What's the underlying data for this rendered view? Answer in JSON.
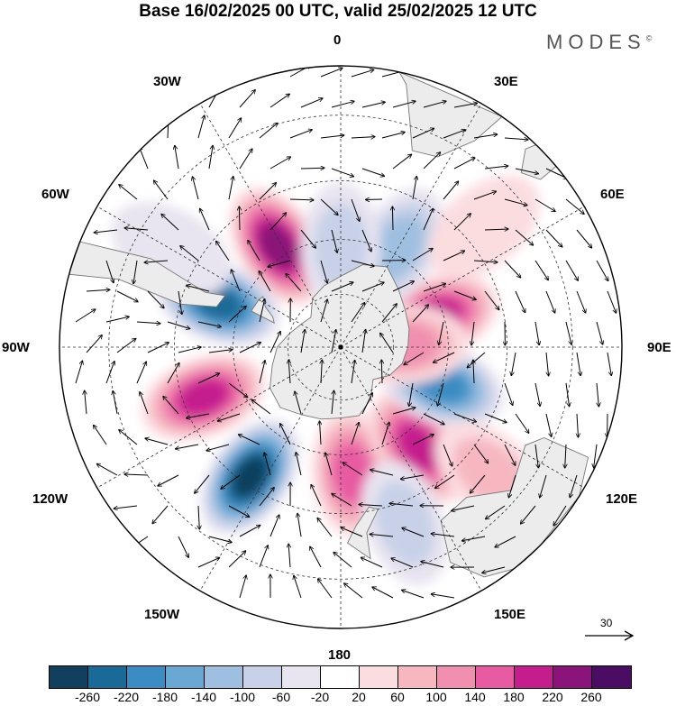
{
  "title": "Base 16/02/2025 00 UTC, valid 25/02/2025 12 UTC",
  "brand": "MODES",
  "brand_mark": "©",
  "map": {
    "projection": "south-polar-stereographic",
    "longitude_labels": {
      "top": "0",
      "top_right": "30E",
      "right_upper": "60E",
      "right": "90E",
      "right_lower": "120E",
      "bottom_right": "150E",
      "bottom": "180",
      "bottom_left": "150W",
      "left_lower": "120W",
      "left": "90W",
      "left_upper": "60W",
      "top_left": "30W"
    },
    "colors": {
      "land": "#ececec",
      "coast": "#777777",
      "grid": "#333333"
    }
  },
  "reference_vector": {
    "label": "30"
  },
  "colorbar": {
    "colors": [
      "#10405e",
      "#1a6a97",
      "#3a8cc2",
      "#6aa8d4",
      "#9fbfe0",
      "#c8d1e8",
      "#e8e4f0",
      "#ffffff",
      "#fbdde0",
      "#f6b7c1",
      "#f08fb0",
      "#e85aa2",
      "#c51d8e",
      "#8a1479",
      "#4b0d63"
    ],
    "tick_labels": [
      "-260",
      "-220",
      "-180",
      "-140",
      "-100",
      "-60",
      "-20",
      "20",
      "60",
      "100",
      "140",
      "180",
      "220",
      "260"
    ]
  },
  "anomalies": [
    {
      "lon": -32,
      "lat": -57,
      "value": 230
    },
    {
      "lon": -70,
      "lat": -54,
      "value": -240
    },
    {
      "lon": -110,
      "lat": -50,
      "value": 210
    },
    {
      "lon": -145,
      "lat": -47,
      "value": -260
    },
    {
      "lon": 175,
      "lat": -55,
      "value": 150
    },
    {
      "lon": 142,
      "lat": -55,
      "value": 200
    },
    {
      "lon": 110,
      "lat": -60,
      "value": -210
    },
    {
      "lon": 72,
      "lat": -62,
      "value": 180
    },
    {
      "lon": 88,
      "lat": -72,
      "value": 120
    },
    {
      "lon": 30,
      "lat": -58,
      "value": -130
    },
    {
      "lon": 0,
      "lat": -62,
      "value": -60
    },
    {
      "lon": 130,
      "lat": -38,
      "value": 60
    },
    {
      "lon": 160,
      "lat": -40,
      "value": -60
    },
    {
      "lon": 50,
      "lat": -40,
      "value": 40
    },
    {
      "lon": -60,
      "lat": -38,
      "value": -40
    }
  ]
}
